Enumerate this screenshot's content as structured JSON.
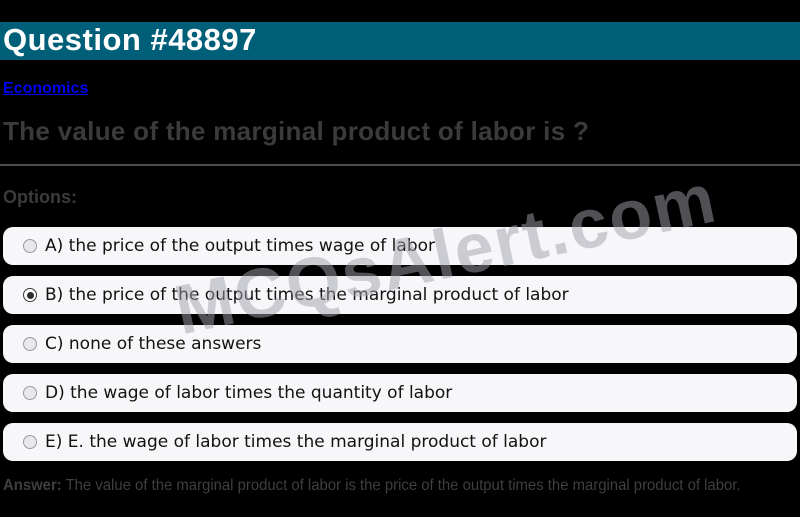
{
  "page": {
    "background_color": "#000000"
  },
  "header": {
    "title": "Question #48897",
    "bg_color": "#005f78",
    "text_color": "#ffffff"
  },
  "category_link": {
    "label": "Economics",
    "color": "#0000f2"
  },
  "question": {
    "text": "The value of the marginal product of labor is ?"
  },
  "options_label": "Options:",
  "options": [
    {
      "key": "A",
      "label": "A) the price of the output times wage of labor",
      "selected": false
    },
    {
      "key": "B",
      "label": "B) the price of the output times the marginal product of labor",
      "selected": true
    },
    {
      "key": "C",
      "label": "C) none of these answers",
      "selected": false
    },
    {
      "key": "D",
      "label": "D) the wage of labor times the quantity of labor",
      "selected": false
    },
    {
      "key": "E",
      "label": "E) E. the wage of labor times the marginal product of labor",
      "selected": false
    }
  ],
  "answer": {
    "label": "Answer:",
    "text": "The value of the marginal product of labor is the price of the output times the marginal product of labor."
  },
  "watermark": {
    "text": "MCQsAlert.com"
  },
  "colors": {
    "option_row_bg": "#f7f7fa",
    "question_text": "#3b3b3b",
    "divider": "#4d4d4d"
  }
}
